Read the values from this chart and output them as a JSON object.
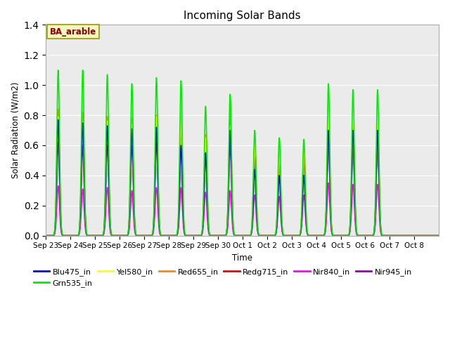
{
  "title": "Incoming Solar Bands",
  "xlabel": "Time",
  "ylabel": "Solar Radiation (W/m2)",
  "ylim": [
    0,
    1.4
  ],
  "fig_facecolor": "#ffffff",
  "plot_bg_color": "#ebebeb",
  "field_label": "BA_arable",
  "field_label_color": "#8B0000",
  "field_label_bg": "#f5f5c0",
  "series_order": [
    "Nir945_in",
    "Nir840_in",
    "Redg715_in",
    "Red655_in",
    "Yel580_in",
    "Blu475_in",
    "Grn535_in"
  ],
  "series": {
    "Blu475_in": {
      "color": "#0000cc",
      "lw": 1.2
    },
    "Grn535_in": {
      "color": "#00ee00",
      "lw": 1.2
    },
    "Yel580_in": {
      "color": "#ffff00",
      "lw": 1.2
    },
    "Red655_in": {
      "color": "#ff8800",
      "lw": 1.2
    },
    "Redg715_in": {
      "color": "#ee0000",
      "lw": 1.2
    },
    "Nir840_in": {
      "color": "#ff00ff",
      "lw": 1.2
    },
    "Nir945_in": {
      "color": "#9900bb",
      "lw": 1.2
    }
  },
  "legend_order": [
    "Blu475_in",
    "Grn535_in",
    "Yel580_in",
    "Red655_in",
    "Redg715_in",
    "Nir840_in",
    "Nir945_in"
  ],
  "tick_dates": [
    "Sep 23",
    "Sep 24",
    "Sep 25",
    "Sep 26",
    "Sep 27",
    "Sep 28",
    "Sep 29",
    "Sep 30",
    "Oct 1",
    "Oct 2",
    "Oct 3",
    "Oct 4",
    "Oct 5",
    "Oct 6",
    "Oct 7",
    "Oct 8"
  ],
  "day_peaks": {
    "Grn535_in": [
      1.1,
      1.1,
      1.07,
      1.01,
      1.05,
      1.03,
      0.86,
      0.94,
      0.7,
      0.65,
      0.64,
      1.01,
      0.97,
      0.97,
      0.0,
      0.0
    ],
    "Blu475_in": [
      0.77,
      0.75,
      0.73,
      0.71,
      0.72,
      0.6,
      0.55,
      0.7,
      0.44,
      0.4,
      0.4,
      0.7,
      0.7,
      0.7,
      0.0,
      0.0
    ],
    "Red655_in": [
      0.84,
      0.82,
      0.79,
      0.78,
      0.8,
      0.75,
      0.67,
      0.85,
      0.6,
      0.55,
      0.56,
      0.75,
      0.74,
      0.74,
      0.0,
      0.0
    ],
    "Redg715_in": [
      0.79,
      0.76,
      0.76,
      0.74,
      0.77,
      0.71,
      0.65,
      0.8,
      0.58,
      0.53,
      0.55,
      0.72,
      0.72,
      0.72,
      0.0,
      0.0
    ],
    "Yel580_in": [
      0.79,
      0.76,
      0.76,
      0.74,
      0.79,
      0.79,
      0.65,
      0.73,
      0.6,
      0.55,
      0.58,
      0.76,
      0.74,
      0.74,
      0.0,
      0.0
    ],
    "Nir840_in": [
      0.33,
      0.31,
      0.32,
      0.3,
      0.32,
      0.32,
      0.29,
      0.3,
      0.27,
      0.26,
      0.27,
      0.35,
      0.34,
      0.34,
      0.0,
      0.0
    ],
    "Nir945_in": [
      0.62,
      0.6,
      0.6,
      0.6,
      0.62,
      0.6,
      0.53,
      0.6,
      0.5,
      0.48,
      0.5,
      0.62,
      0.6,
      0.6,
      0.0,
      0.0
    ]
  }
}
